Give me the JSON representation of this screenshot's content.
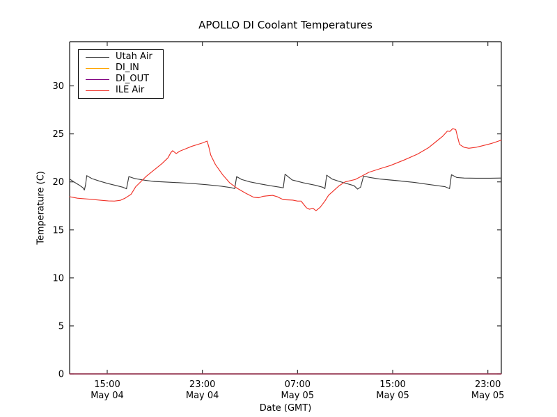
{
  "chart_data": {
    "type": "line",
    "title": "APOLLO DI Coolant Temperatures",
    "xlabel": "Date (GMT)",
    "ylabel": "Temperature (C)",
    "x_value_unit": "hours since May 04 00:00 GMT",
    "xlim": [
      11.84,
      48.13
    ],
    "ylim": [
      0,
      34.6
    ],
    "grid": false,
    "legend_position": "upper left",
    "xticks": [
      {
        "value": 15,
        "line1": "15:00",
        "line2": "May 04"
      },
      {
        "value": 23,
        "line1": "23:00",
        "line2": "May 04"
      },
      {
        "value": 31,
        "line1": "07:00",
        "line2": "May 05"
      },
      {
        "value": 39,
        "line1": "15:00",
        "line2": "May 05"
      },
      {
        "value": 47,
        "line1": "23:00",
        "line2": "May 05"
      }
    ],
    "yticks": [
      0,
      5,
      10,
      15,
      20,
      25,
      30
    ],
    "series": [
      {
        "name": "Utah Air",
        "color": "#3a3a3a",
        "points": [
          [
            11.84,
            20.3
          ],
          [
            12.2,
            20.0
          ],
          [
            12.6,
            19.7
          ],
          [
            12.95,
            19.4
          ],
          [
            13.08,
            19.15
          ],
          [
            13.18,
            19.7
          ],
          [
            13.28,
            20.65
          ],
          [
            13.7,
            20.35
          ],
          [
            14.3,
            20.1
          ],
          [
            15.0,
            19.85
          ],
          [
            15.8,
            19.6
          ],
          [
            16.3,
            19.45
          ],
          [
            16.62,
            19.28
          ],
          [
            16.82,
            20.55
          ],
          [
            17.3,
            20.35
          ],
          [
            18.0,
            20.2
          ],
          [
            18.9,
            20.05
          ],
          [
            20.5,
            19.95
          ],
          [
            22.0,
            19.85
          ],
          [
            23.4,
            19.7
          ],
          [
            24.6,
            19.55
          ],
          [
            25.4,
            19.4
          ],
          [
            25.72,
            19.3
          ],
          [
            25.88,
            20.55
          ],
          [
            26.3,
            20.25
          ],
          [
            27.0,
            20.0
          ],
          [
            27.8,
            19.8
          ],
          [
            28.7,
            19.6
          ],
          [
            29.5,
            19.45
          ],
          [
            29.8,
            19.38
          ],
          [
            29.95,
            20.8
          ],
          [
            30.55,
            20.2
          ],
          [
            31.5,
            19.9
          ],
          [
            32.5,
            19.65
          ],
          [
            33.1,
            19.45
          ],
          [
            33.3,
            19.3
          ],
          [
            33.45,
            20.7
          ],
          [
            33.9,
            20.3
          ],
          [
            34.5,
            20.05
          ],
          [
            35.2,
            19.8
          ],
          [
            35.75,
            19.6
          ],
          [
            36.05,
            19.25
          ],
          [
            36.3,
            19.45
          ],
          [
            36.55,
            20.6
          ],
          [
            37.1,
            20.45
          ],
          [
            37.9,
            20.3
          ],
          [
            39.2,
            20.15
          ],
          [
            40.8,
            19.95
          ],
          [
            42.2,
            19.7
          ],
          [
            43.4,
            19.5
          ],
          [
            43.78,
            19.3
          ],
          [
            43.94,
            20.75
          ],
          [
            44.4,
            20.45
          ],
          [
            45.0,
            20.4
          ],
          [
            46.0,
            20.38
          ],
          [
            47.2,
            20.38
          ],
          [
            48.13,
            20.4
          ]
        ]
      },
      {
        "name": "DI_IN",
        "color": "#ffa500",
        "points": [
          [
            11.84,
            0
          ],
          [
            48.13,
            0
          ]
        ]
      },
      {
        "name": "DI_OUT",
        "color": "#800080",
        "points": [
          [
            11.84,
            0
          ],
          [
            48.13,
            0
          ]
        ]
      },
      {
        "name": "ILE Air",
        "color": "#f03127",
        "points": [
          [
            11.84,
            18.45
          ],
          [
            12.5,
            18.3
          ],
          [
            13.5,
            18.2
          ],
          [
            14.5,
            18.08
          ],
          [
            15.1,
            18.02
          ],
          [
            15.6,
            18.0
          ],
          [
            16.1,
            18.08
          ],
          [
            16.5,
            18.3
          ],
          [
            17.0,
            18.7
          ],
          [
            17.4,
            19.5
          ],
          [
            17.85,
            20.05
          ],
          [
            18.3,
            20.6
          ],
          [
            18.85,
            21.15
          ],
          [
            19.6,
            21.9
          ],
          [
            20.1,
            22.5
          ],
          [
            20.35,
            23.05
          ],
          [
            20.5,
            23.25
          ],
          [
            20.8,
            22.95
          ],
          [
            21.1,
            23.2
          ],
          [
            21.5,
            23.4
          ],
          [
            22.1,
            23.7
          ],
          [
            23.0,
            24.05
          ],
          [
            23.4,
            24.25
          ],
          [
            23.55,
            23.6
          ],
          [
            23.7,
            22.8
          ],
          [
            24.1,
            21.8
          ],
          [
            24.7,
            20.75
          ],
          [
            25.3,
            19.9
          ],
          [
            25.9,
            19.35
          ],
          [
            26.6,
            18.85
          ],
          [
            27.3,
            18.4
          ],
          [
            27.75,
            18.35
          ],
          [
            28.1,
            18.5
          ],
          [
            28.9,
            18.6
          ],
          [
            29.3,
            18.45
          ],
          [
            29.8,
            18.15
          ],
          [
            30.6,
            18.1
          ],
          [
            31.0,
            18.0
          ],
          [
            31.3,
            18.0
          ],
          [
            31.75,
            17.3
          ],
          [
            32.0,
            17.15
          ],
          [
            32.3,
            17.25
          ],
          [
            32.55,
            17.0
          ],
          [
            32.9,
            17.35
          ],
          [
            33.3,
            18.0
          ],
          [
            33.6,
            18.6
          ],
          [
            34.5,
            19.6
          ],
          [
            35.0,
            20.0
          ],
          [
            35.85,
            20.25
          ],
          [
            36.4,
            20.6
          ],
          [
            37.0,
            21.0
          ],
          [
            38.0,
            21.4
          ],
          [
            38.8,
            21.7
          ],
          [
            40.0,
            22.3
          ],
          [
            41.1,
            22.9
          ],
          [
            42.0,
            23.55
          ],
          [
            42.6,
            24.15
          ],
          [
            43.2,
            24.75
          ],
          [
            43.6,
            25.3
          ],
          [
            43.8,
            25.25
          ],
          [
            44.05,
            25.55
          ],
          [
            44.3,
            25.45
          ],
          [
            44.45,
            24.7
          ],
          [
            44.62,
            23.9
          ],
          [
            45.0,
            23.6
          ],
          [
            45.4,
            23.5
          ],
          [
            46.0,
            23.6
          ],
          [
            46.5,
            23.75
          ],
          [
            47.3,
            24.0
          ],
          [
            47.9,
            24.25
          ],
          [
            48.13,
            24.35
          ]
        ]
      }
    ]
  }
}
